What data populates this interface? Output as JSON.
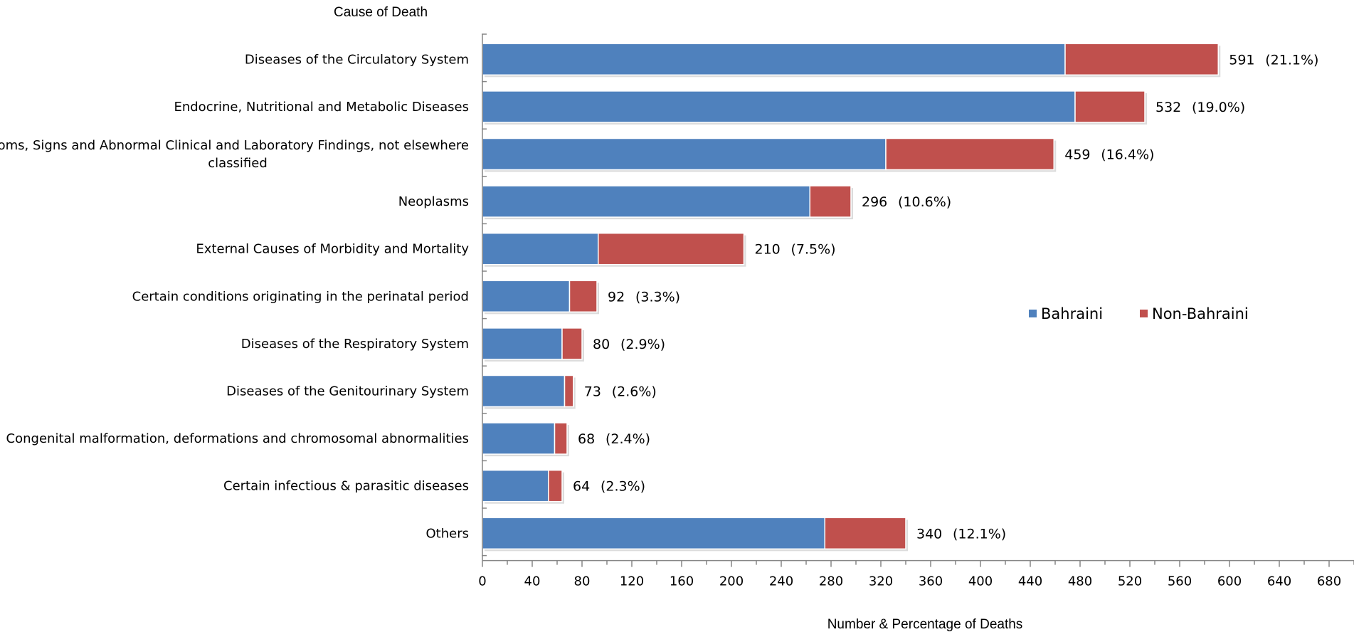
{
  "chart_data": {
    "type": "bar",
    "orientation": "horizontal",
    "stacked": true,
    "y_axis_title": "Cause of Death",
    "x_axis_title": "Number & Percentage of Deaths",
    "categories": [
      [
        "Diseases of the Circulatory System"
      ],
      [
        "Endocrine, Nutritional and Metabolic Diseases"
      ],
      [
        "Symptoms, Signs and Abnormal Clinical and  Laboratory Findings, not elsewhere",
        "classified"
      ],
      [
        "Neoplasms"
      ],
      [
        "External Causes of Morbidity and Mortality"
      ],
      [
        "Certain conditions originating in the perinatal period"
      ],
      [
        "Diseases of the Respiratory System"
      ],
      [
        "Diseases of the Genitourinary System"
      ],
      [
        "Congenital malformation, deformations and chromosomal abnormalities"
      ],
      [
        "Certain infectious & parasitic diseases"
      ],
      [
        "Others"
      ]
    ],
    "series": [
      {
        "name": "Bahraini",
        "color": "#4f81bd",
        "values": [
          468,
          476,
          324,
          263,
          93,
          70,
          64,
          66,
          58,
          53,
          275
        ]
      },
      {
        "name": "Non-Bahraini",
        "color": "#c0504d",
        "values": [
          123,
          56,
          135,
          33,
          117,
          22,
          16,
          7,
          10,
          11,
          65
        ]
      }
    ],
    "totals": [
      591,
      532,
      459,
      296,
      210,
      92,
      80,
      73,
      68,
      64,
      340
    ],
    "percent_labels": [
      "(21.1%)",
      "(19.0%)",
      "(16.4%)",
      "(10.6%)",
      "(7.5%)",
      "(3.3%)",
      "(2.9%)",
      "(2.6%)",
      "(2.4%)",
      "(2.3%)",
      "(12.1%)"
    ],
    "xlim": [
      0,
      700
    ],
    "x_ticks": [
      0,
      40,
      80,
      120,
      160,
      200,
      240,
      280,
      320,
      360,
      400,
      440,
      480,
      520,
      560,
      600,
      640,
      680
    ],
    "x_minor_step": 20,
    "grid": false,
    "legend_position": "right"
  }
}
